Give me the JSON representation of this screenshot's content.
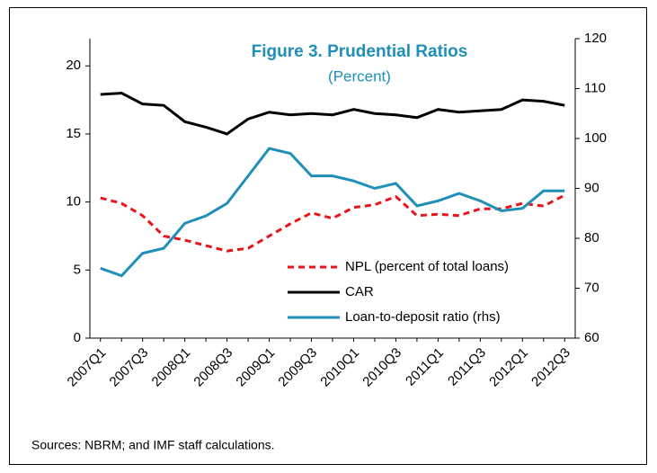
{
  "chart_data": {
    "type": "line",
    "title": "Figure 3. Prudential Ratios",
    "subtitle": "(Percent)",
    "note": "Sources:  NBRM; and IMF staff calculations.",
    "categories": [
      "2007Q1",
      null,
      "2007Q3",
      null,
      "2008Q1",
      null,
      "2008Q3",
      null,
      "2009Q1",
      null,
      "2009Q3",
      null,
      "2010Q1",
      null,
      "2010Q3",
      null,
      "2011Q1",
      null,
      "2011Q3",
      null,
      "2012Q1",
      null,
      "2012Q3"
    ],
    "ylim": [
      0,
      22
    ],
    "yticks": [
      0,
      5,
      10,
      15,
      20
    ],
    "y2lim": [
      60,
      120
    ],
    "y2ticks": [
      60,
      70,
      80,
      90,
      100,
      110,
      120
    ],
    "legend": "lower right",
    "series": [
      {
        "name": "NPL (percent of total loans)",
        "color": "#e8141c",
        "style": "dashed",
        "values": [
          10.3,
          9.9,
          9.0,
          7.5,
          7.2,
          6.8,
          6.4,
          6.6,
          7.5,
          8.4,
          9.2,
          8.8,
          9.6,
          9.8,
          10.4,
          9.0,
          9.1,
          9.0,
          9.5,
          9.5,
          9.9,
          9.7,
          10.5
        ]
      },
      {
        "name": "CAR",
        "color": "#000000",
        "style": "solid",
        "values": [
          17.9,
          18.0,
          17.2,
          17.1,
          15.9,
          15.5,
          15.0,
          16.1,
          16.6,
          16.4,
          16.5,
          16.4,
          16.8,
          16.5,
          16.4,
          16.2,
          16.8,
          16.6,
          16.7,
          16.8,
          17.5,
          17.4,
          17.1
        ]
      },
      {
        "name": "Loan-to-deposit ratio (rhs)",
        "color": "#1f8fb8",
        "style": "solid",
        "axis": "y2",
        "values": [
          74,
          72.5,
          77,
          78,
          83,
          84.5,
          87,
          92.5,
          98,
          97,
          92.5,
          92.5,
          91.5,
          90,
          91,
          86.5,
          87.5,
          89,
          87.5,
          85.5,
          86,
          89.5,
          89.5
        ]
      }
    ]
  }
}
